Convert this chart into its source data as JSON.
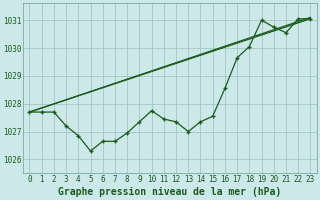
{
  "title": "Graphe pression niveau de la mer (hPa)",
  "bg_color": "#cde8e8",
  "grid_color": "#9bbfbf",
  "line_color": "#1a5c1a",
  "x_ticks": [
    0,
    1,
    2,
    3,
    4,
    5,
    6,
    7,
    8,
    9,
    10,
    11,
    12,
    13,
    14,
    15,
    16,
    17,
    18,
    19,
    20,
    21,
    22,
    23
  ],
  "ylim": [
    1025.5,
    1031.6
  ],
  "yticks": [
    1026,
    1027,
    1028,
    1029,
    1030,
    1031
  ],
  "series1_x": [
    0,
    23
  ],
  "series1_y": [
    1027.7,
    1031.1
  ],
  "series2_x": [
    0,
    23
  ],
  "series2_y": [
    1027.7,
    1031.05
  ],
  "series3_x": [
    0,
    1,
    2,
    3,
    4,
    5,
    6,
    7,
    8,
    9,
    10,
    11,
    12,
    13,
    14,
    15,
    16,
    17,
    18,
    19,
    20,
    21,
    22,
    23
  ],
  "series3_y": [
    1027.7,
    1027.7,
    1027.7,
    1027.2,
    1026.85,
    1026.3,
    1026.65,
    1026.65,
    1026.95,
    1027.35,
    1027.75,
    1027.45,
    1027.35,
    1027.0,
    1027.35,
    1027.55,
    1028.55,
    1029.65,
    1030.05,
    1031.0,
    1030.75,
    1030.55,
    1031.05,
    1031.05
  ],
  "title_fontsize": 7.0,
  "tick_fontsize": 5.5
}
